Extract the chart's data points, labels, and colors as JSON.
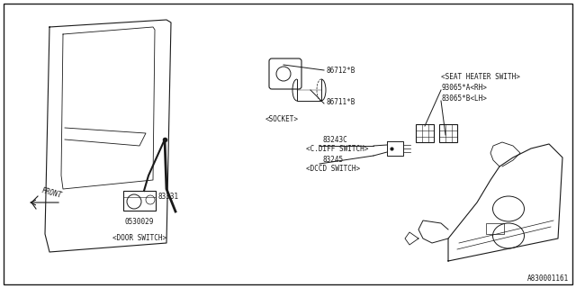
{
  "background_color": "#ffffff",
  "border_color": "#000000",
  "line_color": "#1a1a1a",
  "text_color": "#1a1a1a",
  "figsize": [
    6.4,
    3.2
  ],
  "dpi": 100,
  "bottom_right_label": "A830001161",
  "label_86712": "86712*B",
  "label_86711": "86711*B",
  "label_socket": "<SOCKET>",
  "label_83331": "83331",
  "label_0530029": "0530029",
  "label_door_sw": "<DOOR SWITCH>",
  "label_83243C": "83243C",
  "label_cdiff": "<C.DIFF SWITCH>",
  "label_83245": "83245",
  "label_dccd": "<DCCD SWITCH>",
  "label_seat_heater": "<SEAT HEATER SWITH>",
  "label_93065A": "93065*A<RH>",
  "label_83065B": "83065*B<LH>",
  "label_front": "FRONT"
}
